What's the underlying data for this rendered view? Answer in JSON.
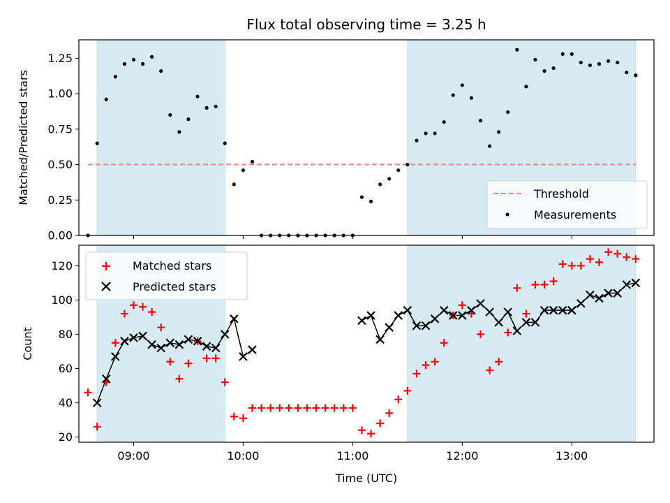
{
  "colors": {
    "shade": "#add8e6",
    "threshold": "#f08080",
    "measurements": "#000000",
    "matched": "#ff0000",
    "predicted": "#000000"
  },
  "chart_data": [
    {
      "type": "scatter",
      "title": "Flux total observing time = 3.25 h",
      "xlabel": "",
      "ylabel": "Matched/Predicted stars",
      "xlim": [
        "08:30",
        "13:45"
      ],
      "ylim": [
        0,
        1.38
      ],
      "y_ticks": [
        0.0,
        0.25,
        0.5,
        0.75,
        1.0,
        1.25
      ],
      "y_tick_labels": [
        "0.00",
        "0.25",
        "0.50",
        "0.75",
        "1.00",
        "1.25"
      ],
      "shaded_intervals": [
        [
          "08:40",
          "09:50"
        ],
        [
          "11:30",
          "13:35"
        ]
      ],
      "threshold": {
        "name": "Threshold",
        "y": 0.5,
        "x_range": [
          "08:35",
          "13:35"
        ],
        "style": "dashed"
      },
      "legend_position": "lower-right",
      "series": [
        {
          "name": "Measurements",
          "marker": "dot",
          "x": [
            "08:35",
            "08:40",
            "08:45",
            "08:50",
            "08:55",
            "09:00",
            "09:05",
            "09:10",
            "09:15",
            "09:20",
            "09:25",
            "09:30",
            "09:35",
            "09:40",
            "09:45",
            "09:50",
            "09:55",
            "10:00",
            "10:05",
            "10:10",
            "10:15",
            "10:20",
            "10:25",
            "10:30",
            "10:35",
            "10:40",
            "10:45",
            "10:50",
            "10:55",
            "11:00",
            "11:05",
            "11:10",
            "11:15",
            "11:20",
            "11:25",
            "11:30",
            "11:35",
            "11:40",
            "11:45",
            "11:50",
            "11:55",
            "12:00",
            "12:05",
            "12:10",
            "12:15",
            "12:20",
            "12:25",
            "12:30",
            "12:35",
            "12:40",
            "12:45",
            "12:50",
            "12:55",
            "13:00",
            "13:05",
            "13:10",
            "13:15",
            "13:20",
            "13:25",
            "13:30",
            "13:35"
          ],
          "y": [
            0.0,
            0.65,
            0.96,
            1.12,
            1.21,
            1.24,
            1.21,
            1.26,
            1.16,
            0.85,
            0.73,
            0.82,
            0.98,
            0.9,
            0.91,
            0.65,
            0.36,
            0.46,
            0.52,
            0.0,
            0.0,
            0.0,
            0.0,
            0.0,
            0.0,
            0.0,
            0.0,
            0.0,
            0.0,
            0.0,
            0.27,
            0.24,
            0.36,
            0.4,
            0.46,
            0.5,
            0.67,
            0.72,
            0.72,
            0.8,
            0.99,
            1.06,
            0.97,
            0.81,
            0.63,
            0.73,
            0.87,
            1.31,
            1.05,
            1.24,
            1.16,
            1.18,
            1.28,
            1.28,
            1.22,
            1.2,
            1.21,
            1.23,
            1.22,
            1.15,
            1.13
          ]
        }
      ]
    },
    {
      "type": "scatter",
      "title": "",
      "xlabel": "Time (UTC)",
      "ylabel": "Count",
      "xlim": [
        "08:30",
        "13:45"
      ],
      "ylim": [
        17,
        132
      ],
      "y_ticks": [
        20,
        40,
        60,
        80,
        100,
        120
      ],
      "y_tick_labels": [
        "20",
        "40",
        "60",
        "80",
        "100",
        "120"
      ],
      "x_ticks": [
        "09:00",
        "10:00",
        "11:00",
        "12:00",
        "13:00"
      ],
      "x_tick_labels": [
        "09:00",
        "10:00",
        "11:00",
        "12:00",
        "13:00"
      ],
      "shaded_intervals": [
        [
          "08:40",
          "09:50"
        ],
        [
          "11:30",
          "13:35"
        ]
      ],
      "legend_position": "upper-left",
      "series": [
        {
          "name": "Matched stars",
          "marker": "plus",
          "x": [
            "08:35",
            "08:40",
            "08:45",
            "08:50",
            "08:55",
            "09:00",
            "09:05",
            "09:10",
            "09:15",
            "09:20",
            "09:25",
            "09:30",
            "09:35",
            "09:40",
            "09:45",
            "09:50",
            "09:55",
            "10:00",
            "10:05",
            "10:10",
            "10:15",
            "10:20",
            "10:25",
            "10:30",
            "10:35",
            "10:40",
            "10:45",
            "10:50",
            "10:55",
            "11:00",
            "11:05",
            "11:10",
            "11:15",
            "11:20",
            "11:25",
            "11:30",
            "11:35",
            "11:40",
            "11:45",
            "11:50",
            "11:55",
            "12:00",
            "12:05",
            "12:10",
            "12:15",
            "12:20",
            "12:25",
            "12:30",
            "12:35",
            "12:40",
            "12:45",
            "12:50",
            "12:55",
            "13:00",
            "13:05",
            "13:10",
            "13:15",
            "13:20",
            "13:25",
            "13:30",
            "13:35"
          ],
          "y": [
            46,
            26,
            52,
            75,
            92,
            97,
            96,
            93,
            84,
            64,
            54,
            63,
            76,
            66,
            66,
            52,
            32,
            31,
            37,
            37,
            37,
            37,
            37,
            37,
            37,
            37,
            37,
            37,
            37,
            37,
            24,
            22,
            28,
            34,
            42,
            47,
            57,
            62,
            64,
            75,
            91,
            97,
            92,
            80,
            59,
            64,
            81,
            107,
            92,
            109,
            109,
            111,
            121,
            120,
            120,
            124,
            122,
            128,
            127,
            125,
            124
          ]
        },
        {
          "name": "Predicted stars",
          "marker": "x",
          "x": [
            "08:40",
            "08:45",
            "08:50",
            "08:55",
            "09:00",
            "09:05",
            "09:10",
            "09:15",
            "09:20",
            "09:25",
            "09:30",
            "09:35",
            "09:40",
            "09:45",
            "09:50",
            "09:55",
            "10:00",
            "10:05",
            "11:05",
            "11:10",
            "11:15",
            "11:20",
            "11:25",
            "11:30",
            "11:35",
            "11:40",
            "11:45",
            "11:50",
            "11:55",
            "12:00",
            "12:05",
            "12:10",
            "12:15",
            "12:20",
            "12:25",
            "12:30",
            "12:35",
            "12:40",
            "12:45",
            "12:50",
            "12:55",
            "13:00",
            "13:05",
            "13:10",
            "13:15",
            "13:20",
            "13:25",
            "13:30",
            "13:35"
          ],
          "y": [
            40,
            54,
            67,
            76,
            78,
            79,
            74,
            72,
            75,
            74,
            77,
            76,
            73,
            72,
            80,
            89,
            67,
            71,
            88,
            91,
            77,
            84,
            91,
            94,
            85,
            85,
            89,
            94,
            91,
            91,
            94,
            98,
            93,
            87,
            93,
            82,
            87,
            87,
            94,
            94,
            94,
            94,
            98,
            103,
            101,
            104,
            104,
            109,
            110
          ]
        }
      ]
    }
  ]
}
